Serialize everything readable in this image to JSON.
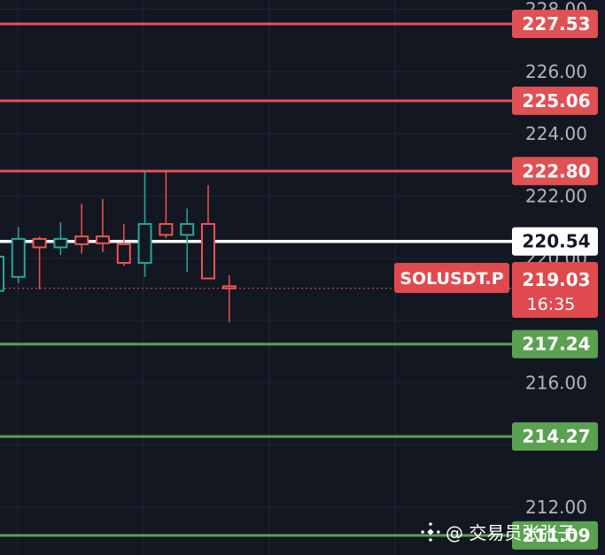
{
  "chart_data": {
    "type": "candlestick",
    "symbol": "SOLUSDT.P",
    "ylim": [
      210.46,
      228.3
    ],
    "y_ticks": [
      "212.00",
      "216.00",
      "220.00",
      "222.00",
      "224.00",
      "226.00",
      "228.00"
    ],
    "grid": true,
    "colors": {
      "background": "#131722",
      "grid": "#1f2433",
      "up": "#26a69a",
      "down": "#ef5350",
      "resistance": "#e05054",
      "support": "#5aa152",
      "pivot": "#ffffff",
      "axis_text": "#b2b5be"
    },
    "candles": [
      {
        "o": 218.95,
        "h": 220.3,
        "l": 218.9,
        "c": 220.05
      },
      {
        "o": 219.4,
        "h": 221.0,
        "l": 219.2,
        "c": 220.62
      },
      {
        "o": 220.62,
        "h": 220.7,
        "l": 219.0,
        "c": 220.35
      },
      {
        "o": 220.35,
        "h": 221.15,
        "l": 220.1,
        "c": 220.62
      },
      {
        "o": 220.7,
        "h": 221.75,
        "l": 220.15,
        "c": 220.45
      },
      {
        "o": 220.7,
        "h": 221.9,
        "l": 220.2,
        "c": 220.48
      },
      {
        "o": 220.45,
        "h": 221.1,
        "l": 219.75,
        "c": 219.85
      },
      {
        "o": 219.85,
        "h": 222.8,
        "l": 219.4,
        "c": 221.1
      },
      {
        "o": 221.1,
        "h": 222.8,
        "l": 220.65,
        "c": 220.75
      },
      {
        "o": 220.75,
        "h": 221.6,
        "l": 219.55,
        "c": 221.1
      },
      {
        "o": 221.1,
        "h": 222.35,
        "l": 219.35,
        "c": 219.35
      },
      {
        "o": 219.1,
        "h": 219.45,
        "l": 217.95,
        "c": 219.03
      }
    ],
    "levels": [
      {
        "value": 227.53,
        "label": "227.53",
        "kind": "resistance"
      },
      {
        "value": 225.06,
        "label": "225.06",
        "kind": "resistance"
      },
      {
        "value": 222.8,
        "label": "222.80",
        "kind": "resistance"
      },
      {
        "value": 220.54,
        "label": "220.54",
        "kind": "pivot"
      },
      {
        "value": 217.24,
        "label": "217.24",
        "kind": "support"
      },
      {
        "value": 214.27,
        "label": "214.27",
        "kind": "support"
      },
      {
        "value": 211.09,
        "label": "211.09",
        "kind": "support"
      }
    ],
    "last_price": {
      "value": 219.03,
      "label": "219.03",
      "countdown": "16:35"
    }
  },
  "watermark": {
    "handle": "@ 交易员张张子",
    "icon": "binance-diamond-icon"
  }
}
